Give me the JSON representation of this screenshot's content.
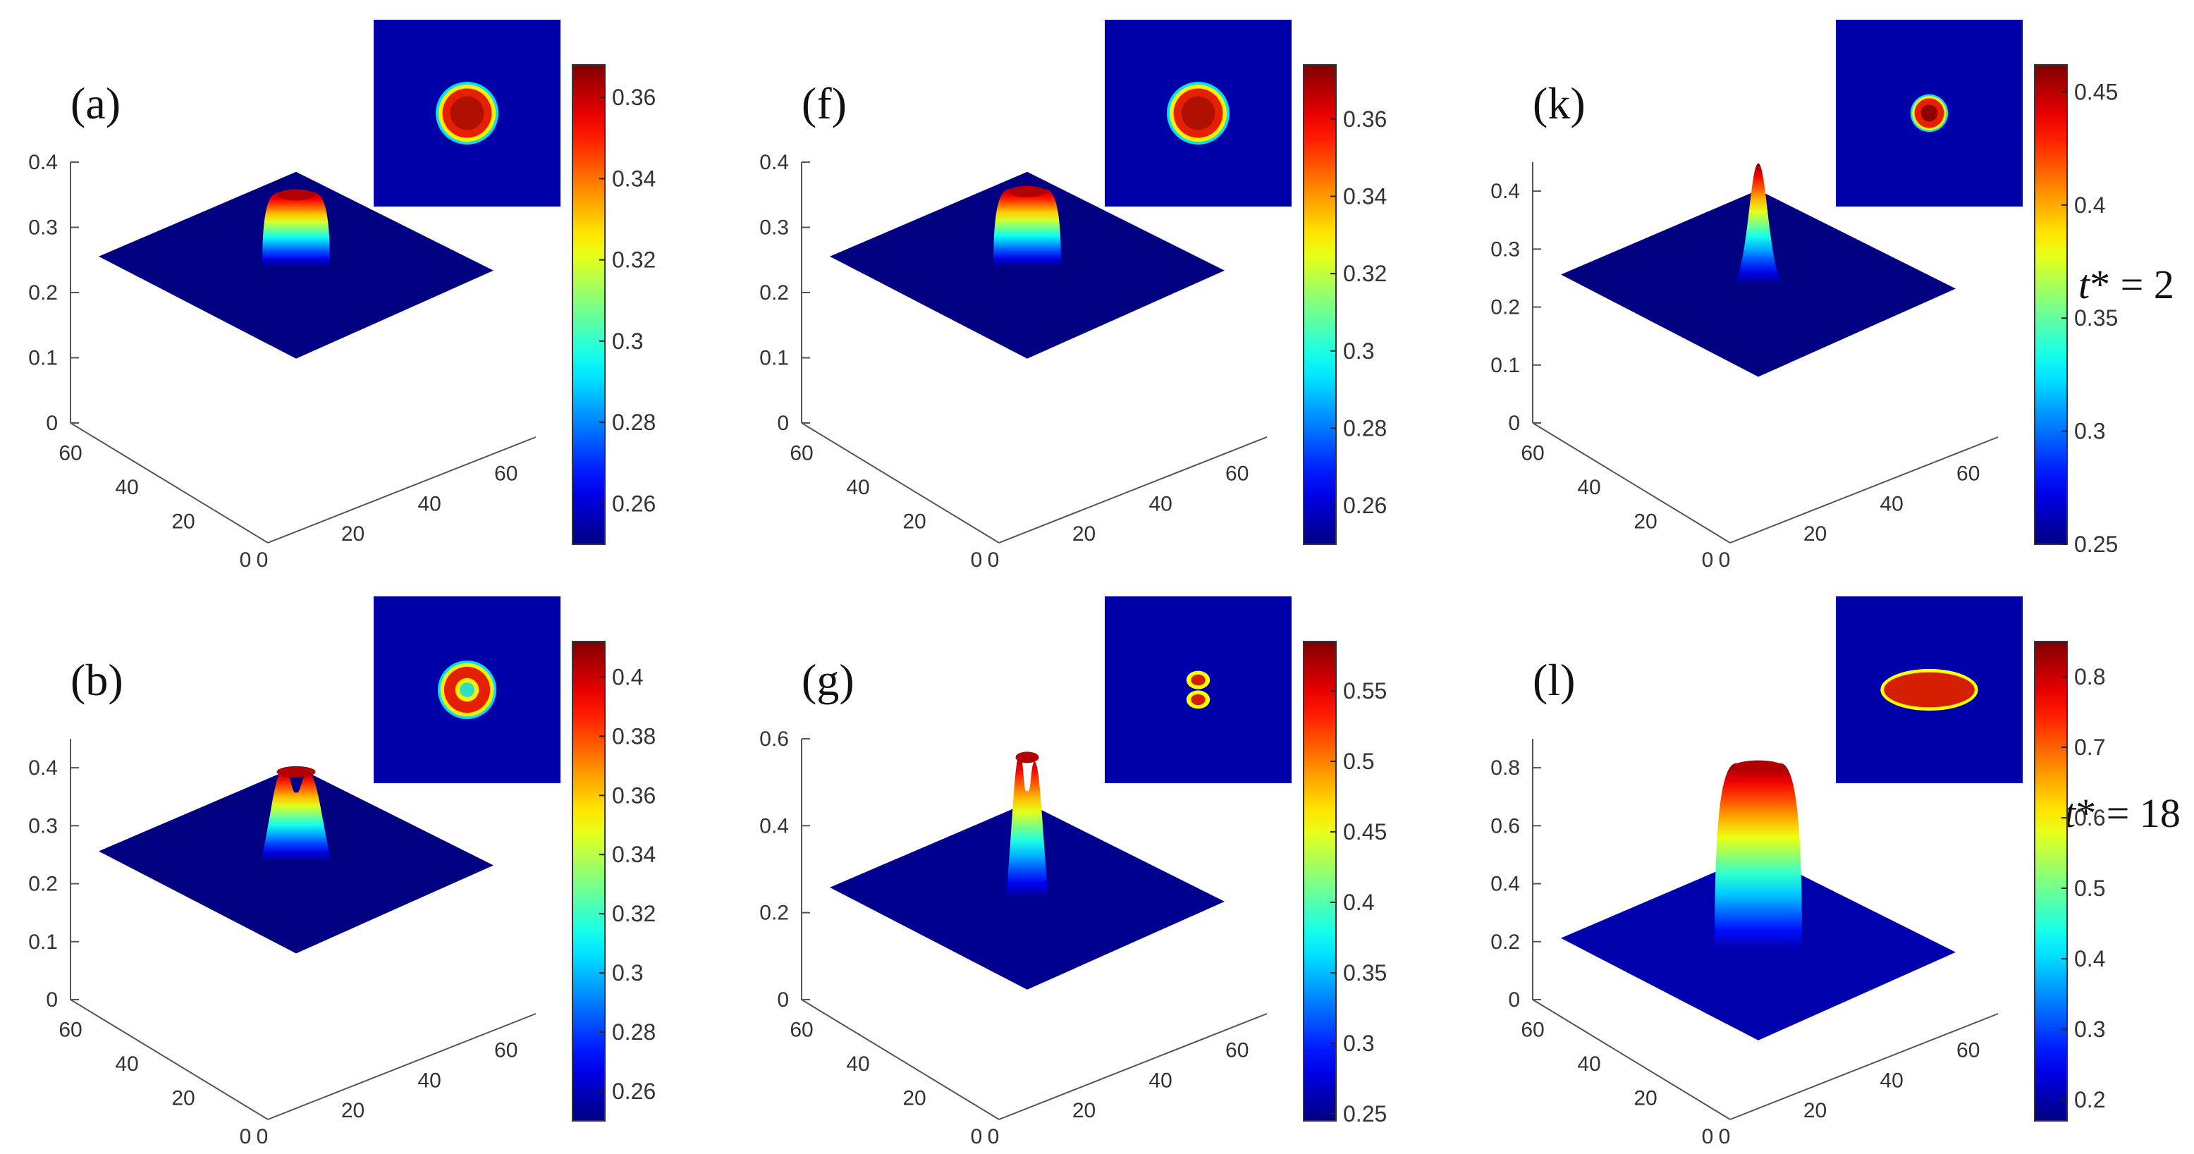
{
  "figure": {
    "rows": [
      {
        "time_symbol": "t",
        "time_label": "* = 2"
      },
      {
        "time_symbol": "t",
        "time_label": "* = 18"
      }
    ]
  },
  "chart_data": [
    {
      "panel": "(a)",
      "type": "surface3d",
      "x_ticks": [
        "0",
        "20",
        "40",
        "60"
      ],
      "y_ticks": [
        "0",
        "20",
        "40",
        "60"
      ],
      "z_ticks": [
        "0",
        "0.1",
        "0.2",
        "0.3",
        "0.4"
      ],
      "zlim": [
        0,
        0.4
      ],
      "base": 0.25,
      "peak": 0.365,
      "shape": "ring",
      "inset": {
        "shape": "ring",
        "radius": 0.3
      },
      "colorbar": {
        "min": 0.25,
        "max": 0.368,
        "ticks": [
          "0.26",
          "0.28",
          "0.3",
          "0.32",
          "0.34",
          "0.36"
        ]
      }
    },
    {
      "panel": "(b)",
      "type": "surface3d",
      "x_ticks": [
        "0",
        "20",
        "40",
        "60"
      ],
      "y_ticks": [
        "0",
        "20",
        "40",
        "60"
      ],
      "z_ticks": [
        "0",
        "0.1",
        "0.2",
        "0.3",
        "0.4"
      ],
      "zlim": [
        0,
        0.45
      ],
      "base": 0.25,
      "peak": 0.41,
      "shape": "double",
      "inset": {
        "shape": "ring-hollow",
        "radius": 0.28
      },
      "colorbar": {
        "min": 0.25,
        "max": 0.412,
        "ticks": [
          "0.26",
          "0.28",
          "0.3",
          "0.32",
          "0.34",
          "0.36",
          "0.38",
          "0.4"
        ]
      }
    },
    {
      "panel": "(f)",
      "type": "surface3d",
      "x_ticks": [
        "0",
        "20",
        "40",
        "60"
      ],
      "y_ticks": [
        "0",
        "20",
        "40",
        "60"
      ],
      "z_ticks": [
        "0",
        "0.1",
        "0.2",
        "0.3",
        "0.4"
      ],
      "zlim": [
        0,
        0.4
      ],
      "base": 0.25,
      "peak": 0.37,
      "shape": "ring",
      "inset": {
        "shape": "ring",
        "radius": 0.3
      },
      "colorbar": {
        "min": 0.25,
        "max": 0.374,
        "ticks": [
          "0.26",
          "0.28",
          "0.3",
          "0.32",
          "0.34",
          "0.36"
        ]
      }
    },
    {
      "panel": "(g)",
      "type": "surface3d",
      "x_ticks": [
        "0",
        "20",
        "40",
        "60"
      ],
      "y_ticks": [
        "0",
        "20",
        "40",
        "60"
      ],
      "z_ticks": [
        "0",
        "0.2",
        "0.4",
        "0.6"
      ],
      "zlim": [
        0,
        0.6
      ],
      "base": 0.25,
      "peak": 0.58,
      "shape": "narrow-double",
      "inset": {
        "shape": "figure8",
        "radius": 0.14
      },
      "colorbar": {
        "min": 0.245,
        "max": 0.585,
        "ticks": [
          "0.25",
          "0.3",
          "0.35",
          "0.4",
          "0.45",
          "0.5",
          "0.55"
        ]
      }
    },
    {
      "panel": "(k)",
      "type": "surface3d",
      "x_ticks": [
        "0",
        "20",
        "40",
        "60"
      ],
      "y_ticks": [
        "0",
        "20",
        "40",
        "60"
      ],
      "z_ticks": [
        "0",
        "0.1",
        "0.2",
        "0.3",
        "0.4"
      ],
      "zlim": [
        0,
        0.45
      ],
      "base": 0.25,
      "peak": 0.46,
      "shape": "peak",
      "inset": {
        "shape": "dot",
        "radius": 0.18
      },
      "colorbar": {
        "min": 0.25,
        "max": 0.462,
        "ticks": [
          "0.25",
          "0.3",
          "0.35",
          "0.4",
          "0.45"
        ]
      }
    },
    {
      "panel": "(l)",
      "type": "surface3d",
      "x_ticks": [
        "0",
        "20",
        "40",
        "60"
      ],
      "y_ticks": [
        "0",
        "20",
        "40",
        "60"
      ],
      "z_ticks": [
        "0",
        "0.2",
        "0.4",
        "0.6",
        "0.8"
      ],
      "zlim": [
        0,
        0.9
      ],
      "base": 0.2,
      "peak": 0.84,
      "shape": "wide",
      "inset": {
        "shape": "ellipse",
        "radius": 0.36
      },
      "colorbar": {
        "min": 0.17,
        "max": 0.85,
        "ticks": [
          "0.2",
          "0.3",
          "0.4",
          "0.5",
          "0.6",
          "0.7",
          "0.8"
        ]
      }
    }
  ]
}
